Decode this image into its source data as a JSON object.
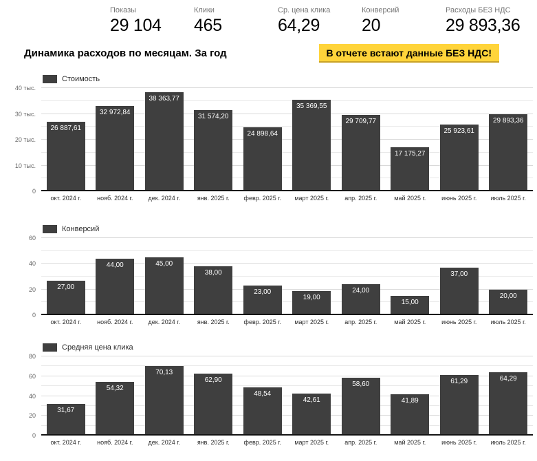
{
  "kpis": [
    {
      "label": "Показы",
      "value": "29 104"
    },
    {
      "label": "Клики",
      "value": "465"
    },
    {
      "label": "Ср. цена клика",
      "value": "64,29"
    },
    {
      "label": "Конверсий",
      "value": "20"
    },
    {
      "label": "Расходы БЕЗ НДС",
      "value": "29 893,36"
    }
  ],
  "header": {
    "title": "Динамика расходов по месяцам. За год",
    "notice": "В отчете встают данные БЕЗ НДС!",
    "notice_bg": "#ffd43a"
  },
  "colors": {
    "bar": "#3f3f3f",
    "grid_major": "#d9d9d9",
    "grid_minor": "#e8e8e8",
    "baseline": "#141414",
    "notice_bg": "#ffd43a"
  },
  "categories": [
    "окт. 2024 г.",
    "нояб. 2024 г.",
    "дек. 2024 г.",
    "янв. 2025 г.",
    "февр. 2025 г.",
    "март 2025 г.",
    "апр. 2025 г.",
    "май 2025 г.",
    "июнь 2025 г.",
    "июль 2025 г."
  ],
  "chart_data": [
    {
      "type": "bar",
      "legend": "Стоимость",
      "categories": [
        "окт. 2024 г.",
        "нояб. 2024 г.",
        "дек. 2024 г.",
        "янв. 2025 г.",
        "февр. 2025 г.",
        "март 2025 г.",
        "апр. 2025 г.",
        "май 2025 г.",
        "июнь 2025 г.",
        "июль 2025 г."
      ],
      "values": [
        26887.61,
        32972.84,
        38363.77,
        31574.2,
        24898.64,
        35369.55,
        29709.77,
        17175.27,
        25923.61,
        29893.36
      ],
      "value_labels": [
        "26 887,61",
        "32 972,84",
        "38 363,77",
        "31 574,20",
        "24 898,64",
        "35 369,55",
        "29 709,77",
        "17 175,27",
        "25 923,61",
        "29 893,36"
      ],
      "ylim": [
        0,
        40000
      ],
      "yticks": [
        {
          "v": 0,
          "label": "0"
        },
        {
          "v": 10000,
          "label": "10 тыс."
        },
        {
          "v": 20000,
          "label": "20 тыс."
        },
        {
          "v": 30000,
          "label": "30 тыс."
        },
        {
          "v": 40000,
          "label": "40 тыс."
        }
      ],
      "minor_step": 5000,
      "grid": true,
      "legend_position": "top-left"
    },
    {
      "type": "bar",
      "legend": "Конверсий",
      "categories": [
        "окт. 2024 г.",
        "нояб. 2024 г.",
        "дек. 2024 г.",
        "янв. 2025 г.",
        "февр. 2025 г.",
        "март 2025 г.",
        "апр. 2025 г.",
        "май 2025 г.",
        "июнь 2025 г.",
        "июль 2025 г."
      ],
      "values": [
        27,
        44,
        45,
        38,
        23,
        19,
        24,
        15,
        37,
        20
      ],
      "value_labels": [
        "27,00",
        "44,00",
        "45,00",
        "38,00",
        "23,00",
        "19,00",
        "24,00",
        "15,00",
        "37,00",
        "20,00"
      ],
      "ylim": [
        0,
        60
      ],
      "yticks": [
        {
          "v": 0,
          "label": "0"
        },
        {
          "v": 20,
          "label": "20"
        },
        {
          "v": 40,
          "label": "40"
        },
        {
          "v": 60,
          "label": "60"
        }
      ],
      "minor_step": 10,
      "grid": true,
      "legend_position": "top-left"
    },
    {
      "type": "bar",
      "legend": "Средняя цена клика",
      "categories": [
        "окт. 2024 г.",
        "нояб. 2024 г.",
        "дек. 2024 г.",
        "янв. 2025 г.",
        "февр. 2025 г.",
        "март 2025 г.",
        "апр. 2025 г.",
        "май 2025 г.",
        "июнь 2025 г.",
        "июль 2025 г."
      ],
      "values": [
        31.67,
        54.32,
        70.13,
        62.9,
        48.54,
        42.61,
        58.6,
        41.89,
        61.29,
        64.29
      ],
      "value_labels": [
        "31,67",
        "54,32",
        "70,13",
        "62,90",
        "48,54",
        "42,61",
        "58,60",
        "41,89",
        "61,29",
        "64,29"
      ],
      "ylim": [
        0,
        80
      ],
      "yticks": [
        {
          "v": 0,
          "label": "0"
        },
        {
          "v": 20,
          "label": "20"
        },
        {
          "v": 40,
          "label": "40"
        },
        {
          "v": 60,
          "label": "60"
        },
        {
          "v": 80,
          "label": "80"
        }
      ],
      "minor_step": 10,
      "grid": true,
      "legend_position": "top-left"
    }
  ]
}
